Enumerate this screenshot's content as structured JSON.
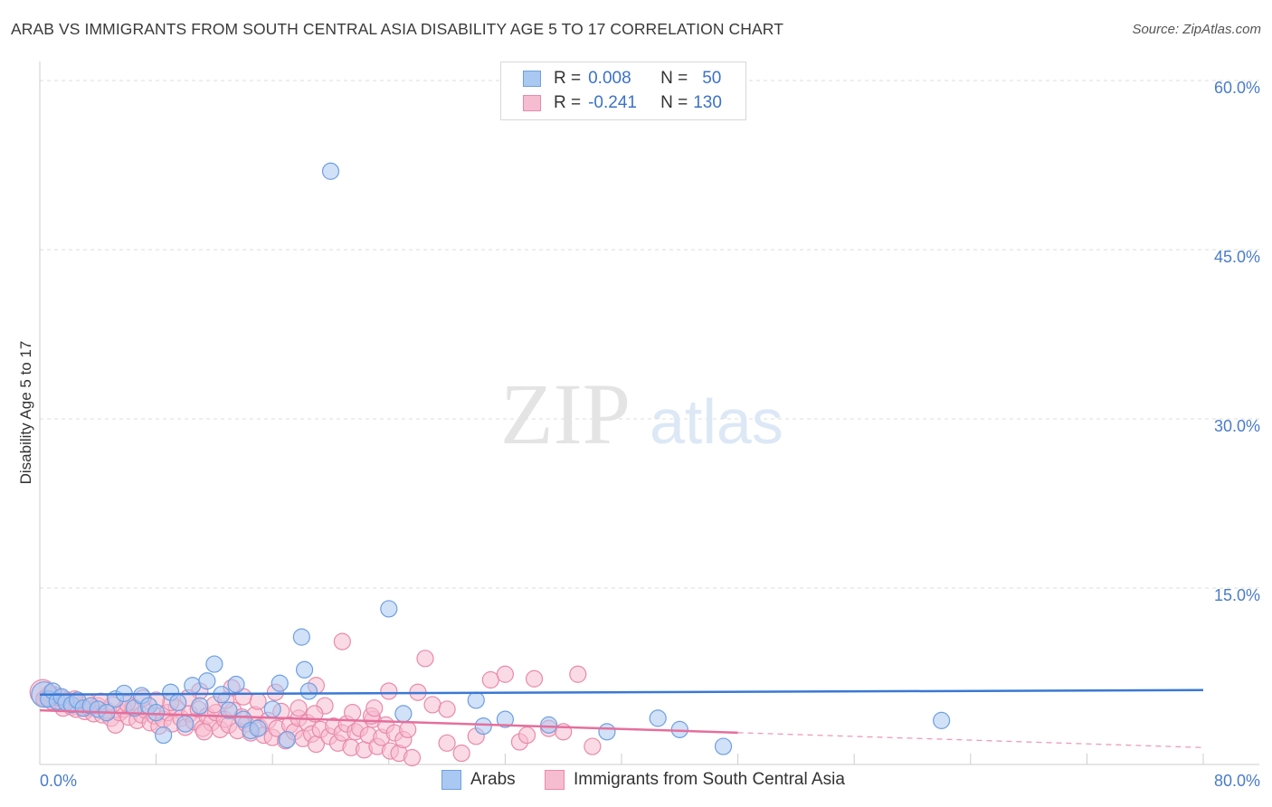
{
  "header": {
    "title": "ARAB VS IMMIGRANTS FROM SOUTH CENTRAL ASIA DISABILITY AGE 5 TO 17 CORRELATION CHART",
    "source": "Source: ZipAtlas.com"
  },
  "legend": {
    "r_label": "R =",
    "n_label": "N =",
    "rows": [
      {
        "r": "0.008",
        "n": "50",
        "color": "#a9c8f2",
        "border": "#6f9fe0"
      },
      {
        "r": "-0.241",
        "n": "130",
        "color": "#f6bcd0",
        "border": "#e98aaa"
      }
    ]
  },
  "watermark": {
    "zip": "ZIP",
    "atlas": "atlas"
  },
  "chart_data": {
    "type": "scatter",
    "title": "ARAB VS IMMIGRANTS FROM SOUTH CENTRAL ASIA DISABILITY AGE 5 TO 17 CORRELATION CHART",
    "xlabel": "",
    "ylabel": "Disability Age 5 to 17",
    "xlim": [
      0,
      80
    ],
    "ylim": [
      0,
      65
    ],
    "x_tick_labels": [
      "0.0%",
      "80.0%"
    ],
    "y_ticks": [
      15,
      30,
      45,
      60
    ],
    "y_tick_labels": [
      "15.0%",
      "30.0%",
      "45.0%",
      "60.0%"
    ],
    "series": [
      {
        "name": "Arabs",
        "color": "#a9c8f2",
        "stroke": "#6f9fe0",
        "line_color": "#3a78d4",
        "trend": {
          "x0": 0,
          "y0": 6.2,
          "x1": 80,
          "y1": 6.6,
          "dashed_from": null
        },
        "points": [
          [
            0.3,
            6.2
          ],
          [
            0.6,
            5.8
          ],
          [
            0.9,
            6.5
          ],
          [
            1.2,
            5.6
          ],
          [
            1.5,
            6.0
          ],
          [
            1.8,
            5.5
          ],
          [
            2.2,
            5.3
          ],
          [
            2.6,
            5.7
          ],
          [
            3.0,
            5.0
          ],
          [
            3.5,
            5.2
          ],
          [
            4.0,
            4.9
          ],
          [
            4.6,
            4.6
          ],
          [
            5.2,
            5.8
          ],
          [
            5.8,
            6.3
          ],
          [
            6.5,
            5.0
          ],
          [
            7.0,
            6.1
          ],
          [
            7.5,
            5.2
          ],
          [
            8.0,
            4.6
          ],
          [
            8.5,
            2.6
          ],
          [
            9.0,
            6.4
          ],
          [
            9.5,
            5.5
          ],
          [
            10.0,
            3.6
          ],
          [
            10.5,
            7.0
          ],
          [
            11.0,
            5.2
          ],
          [
            11.5,
            7.4
          ],
          [
            12.0,
            8.9
          ],
          [
            12.5,
            6.2
          ],
          [
            13.0,
            4.8
          ],
          [
            13.5,
            7.1
          ],
          [
            14.0,
            4.0
          ],
          [
            14.5,
            3.0
          ],
          [
            15.0,
            3.2
          ],
          [
            16.0,
            4.9
          ],
          [
            16.5,
            7.2
          ],
          [
            17.0,
            2.2
          ],
          [
            18.0,
            11.3
          ],
          [
            18.2,
            8.4
          ],
          [
            18.5,
            6.5
          ],
          [
            20.0,
            52.6
          ],
          [
            24.0,
            13.8
          ],
          [
            25.0,
            4.5
          ],
          [
            30.0,
            5.7
          ],
          [
            30.5,
            3.4
          ],
          [
            32.0,
            4.0
          ],
          [
            35.0,
            3.5
          ],
          [
            39.0,
            2.9
          ],
          [
            42.5,
            4.1
          ],
          [
            44.0,
            3.1
          ],
          [
            47.0,
            1.6
          ],
          [
            62.0,
            3.9
          ]
        ]
      },
      {
        "name": "Immigrants from South Central Asia",
        "color": "#f6bcd0",
        "stroke": "#e98aaa",
        "line_color": "#e56f9c",
        "trend": {
          "x0": 0,
          "y0": 4.8,
          "x1": 80,
          "y1": 1.5,
          "dashed_from": 48
        },
        "points": [
          [
            0.2,
            6.4
          ],
          [
            0.5,
            6.0
          ],
          [
            0.8,
            5.6
          ],
          [
            1.0,
            6.2
          ],
          [
            1.3,
            5.4
          ],
          [
            1.6,
            5.0
          ],
          [
            1.9,
            5.7
          ],
          [
            2.2,
            5.1
          ],
          [
            2.5,
            4.9
          ],
          [
            2.8,
            5.3
          ],
          [
            3.1,
            4.7
          ],
          [
            3.4,
            5.0
          ],
          [
            3.7,
            4.5
          ],
          [
            4.0,
            5.2
          ],
          [
            4.3,
            4.4
          ],
          [
            4.6,
            4.8
          ],
          [
            4.9,
            4.1
          ],
          [
            5.2,
            3.5
          ],
          [
            5.5,
            4.6
          ],
          [
            5.8,
            4.9
          ],
          [
            6.1,
            4.2
          ],
          [
            6.4,
            5.1
          ],
          [
            6.7,
            3.9
          ],
          [
            7.0,
            4.4
          ],
          [
            7.3,
            4.8
          ],
          [
            7.6,
            3.7
          ],
          [
            7.9,
            4.3
          ],
          [
            8.2,
            3.4
          ],
          [
            8.5,
            4.0
          ],
          [
            8.8,
            4.6
          ],
          [
            9.1,
            3.6
          ],
          [
            9.4,
            5.0
          ],
          [
            9.7,
            4.1
          ],
          [
            10.0,
            3.3
          ],
          [
            10.3,
            4.5
          ],
          [
            10.6,
            3.8
          ],
          [
            10.9,
            4.9
          ],
          [
            11.2,
            3.2
          ],
          [
            11.5,
            4.3
          ],
          [
            11.8,
            3.7
          ],
          [
            12.1,
            4.6
          ],
          [
            12.4,
            3.1
          ],
          [
            12.7,
            4.0
          ],
          [
            13.0,
            3.5
          ],
          [
            13.3,
            4.8
          ],
          [
            13.6,
            3.0
          ],
          [
            13.9,
            4.2
          ],
          [
            14.2,
            3.6
          ],
          [
            14.5,
            2.8
          ],
          [
            14.8,
            4.4
          ],
          [
            15.1,
            3.3
          ],
          [
            15.4,
            2.6
          ],
          [
            15.7,
            3.9
          ],
          [
            16.0,
            2.4
          ],
          [
            16.3,
            3.2
          ],
          [
            16.6,
            4.7
          ],
          [
            16.9,
            2.1
          ],
          [
            17.2,
            3.5
          ],
          [
            17.5,
            2.9
          ],
          [
            17.8,
            4.1
          ],
          [
            18.1,
            2.3
          ],
          [
            18.4,
            3.7
          ],
          [
            18.7,
            2.7
          ],
          [
            19.0,
            1.8
          ],
          [
            19.3,
            3.1
          ],
          [
            19.6,
            5.2
          ],
          [
            19.9,
            2.5
          ],
          [
            20.2,
            3.4
          ],
          [
            20.5,
            1.9
          ],
          [
            20.8,
            2.8
          ],
          [
            21.1,
            3.6
          ],
          [
            21.4,
            1.5
          ],
          [
            21.7,
            2.9
          ],
          [
            22.0,
            3.2
          ],
          [
            22.3,
            1.3
          ],
          [
            22.6,
            2.6
          ],
          [
            22.9,
            4.0
          ],
          [
            23.2,
            1.6
          ],
          [
            23.5,
            2.4
          ],
          [
            23.8,
            3.5
          ],
          [
            24.1,
            1.2
          ],
          [
            24.4,
            2.8
          ],
          [
            24.7,
            1.0
          ],
          [
            25.0,
            2.2
          ],
          [
            25.3,
            3.1
          ],
          [
            25.6,
            0.6
          ],
          [
            26.0,
            6.4
          ],
          [
            27.0,
            5.3
          ],
          [
            28.0,
            4.9
          ],
          [
            29.0,
            1.0
          ],
          [
            30.0,
            2.5
          ],
          [
            31.0,
            7.5
          ],
          [
            32.0,
            8.0
          ],
          [
            33.0,
            2.0
          ],
          [
            34.0,
            7.6
          ],
          [
            35.0,
            3.2
          ],
          [
            36.0,
            2.9
          ],
          [
            37.0,
            8.0
          ],
          [
            38.0,
            1.6
          ],
          [
            26.5,
            9.4
          ],
          [
            20.8,
            10.9
          ],
          [
            19.0,
            7.0
          ],
          [
            17.8,
            5.0
          ],
          [
            16.2,
            6.4
          ],
          [
            15.0,
            5.6
          ],
          [
            13.2,
            6.8
          ],
          [
            12.0,
            5.3
          ],
          [
            11.0,
            6.5
          ],
          [
            10.2,
            5.9
          ],
          [
            9.0,
            5.5
          ],
          [
            8.0,
            5.7
          ],
          [
            7.1,
            5.9
          ],
          [
            6.0,
            5.4
          ],
          [
            5.0,
            5.3
          ],
          [
            4.2,
            5.6
          ],
          [
            3.3,
            5.5
          ],
          [
            2.4,
            5.8
          ],
          [
            1.4,
            5.9
          ],
          [
            0.7,
            6.3
          ],
          [
            0.3,
            5.8
          ],
          [
            21.5,
            4.6
          ],
          [
            22.8,
            4.3
          ],
          [
            24.0,
            6.5
          ],
          [
            28.0,
            1.9
          ],
          [
            33.5,
            2.6
          ],
          [
            23.0,
            5.0
          ],
          [
            18.9,
            4.5
          ],
          [
            14.0,
            6.0
          ],
          [
            12.8,
            5.7
          ],
          [
            11.3,
            2.9
          ]
        ]
      }
    ]
  },
  "bottom_legend": {
    "items": [
      {
        "label": "Arabs",
        "color": "#a9c8f2",
        "border": "#6f9fe0"
      },
      {
        "label": "Immigrants from South Central Asia",
        "color": "#f6bcd0",
        "border": "#e98aaa"
      }
    ]
  }
}
